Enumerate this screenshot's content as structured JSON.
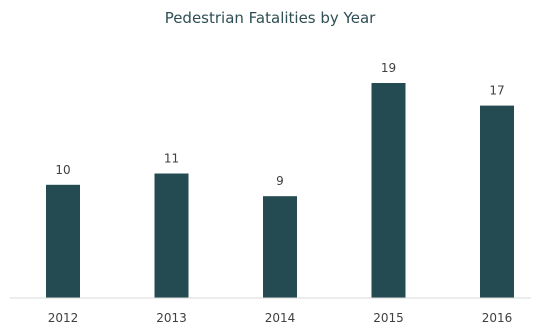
{
  "chart_data": {
    "type": "bar",
    "title": "Pedestrian Fatalities by Year",
    "categories": [
      "2012",
      "2013",
      "2014",
      "2015",
      "2016"
    ],
    "values": [
      10,
      11,
      9,
      19,
      17
    ],
    "xlabel": "",
    "ylabel": "",
    "ylim": [
      0,
      19
    ],
    "grid": false,
    "data_labels": true,
    "bar_color": "#244b52",
    "axis_color": "#d9d9d9",
    "title_color": "#2f4f55",
    "label_color": "#404040"
  }
}
